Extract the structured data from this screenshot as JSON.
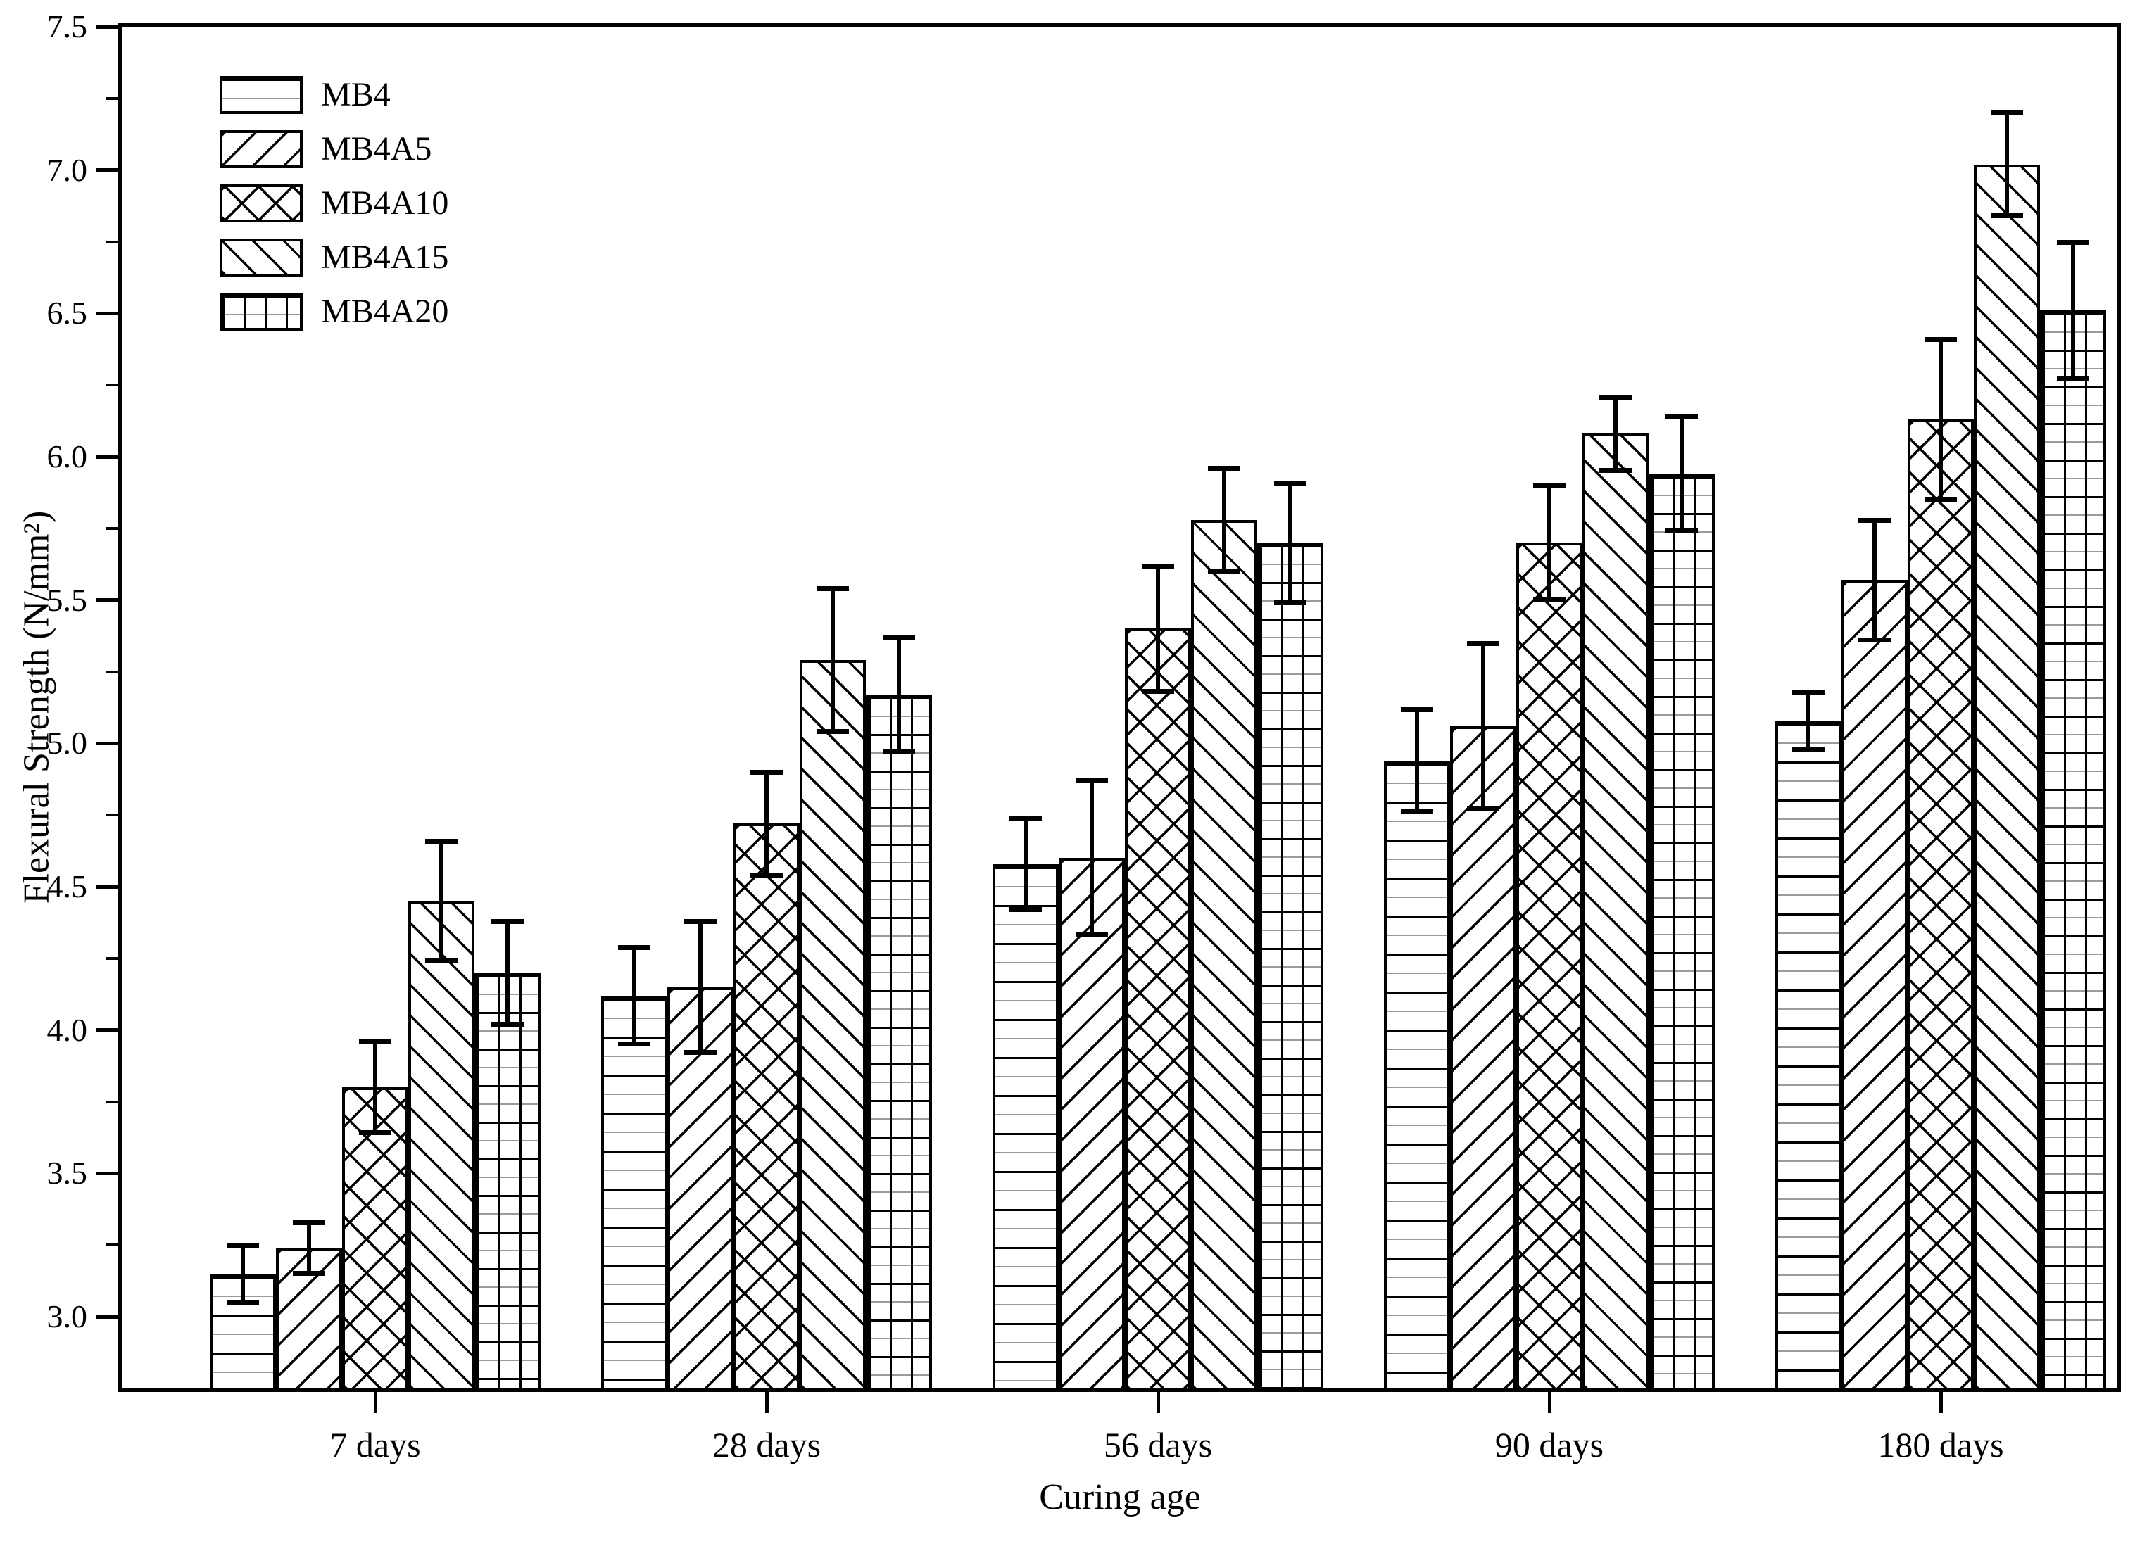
{
  "chart_data": {
    "type": "bar",
    "title": "",
    "xlabel": "Curing age",
    "ylabel": "Flexural Strength (N/mm²)",
    "categories": [
      "7 days",
      "28 days",
      "56 days",
      "90 days",
      "180 days"
    ],
    "series": [
      {
        "name": "MB4",
        "pattern": "horizontal-lines",
        "values": [
          3.15,
          4.12,
          4.58,
          4.94,
          5.08
        ],
        "errors": [
          0.1,
          0.17,
          0.16,
          0.18,
          0.1
        ]
      },
      {
        "name": "MB4A5",
        "pattern": "diagonal-forward-hatch",
        "values": [
          3.24,
          4.15,
          4.6,
          5.06,
          5.57
        ],
        "errors": [
          0.09,
          0.23,
          0.27,
          0.29,
          0.21
        ]
      },
      {
        "name": "MB4A10",
        "pattern": "crosshatch",
        "values": [
          3.8,
          4.72,
          5.4,
          5.7,
          6.13
        ],
        "errors": [
          0.16,
          0.18,
          0.22,
          0.2,
          0.28
        ]
      },
      {
        "name": "MB4A15",
        "pattern": "diagonal-back-hatch",
        "values": [
          4.45,
          5.29,
          5.78,
          6.08,
          7.02
        ],
        "errors": [
          0.21,
          0.25,
          0.18,
          0.13,
          0.18
        ]
      },
      {
        "name": "MB4A20",
        "pattern": "grid-hatch",
        "values": [
          4.2,
          5.17,
          5.7,
          5.94,
          6.51
        ],
        "errors": [
          0.18,
          0.2,
          0.21,
          0.2,
          0.24
        ]
      }
    ],
    "y_axis": {
      "min": 2.75,
      "max": 7.5,
      "major_tick_step": 0.5,
      "minor_tick_step": 0.25,
      "tick_labels": [
        "3.0",
        "3.5",
        "4.0",
        "4.5",
        "5.0",
        "5.5",
        "6.0",
        "6.5",
        "7.0",
        "7.5"
      ]
    },
    "error_bars": true,
    "grid": false,
    "legend_position": "top-left",
    "colors": {
      "foreground": "#000000",
      "background": "#ffffff"
    }
  }
}
